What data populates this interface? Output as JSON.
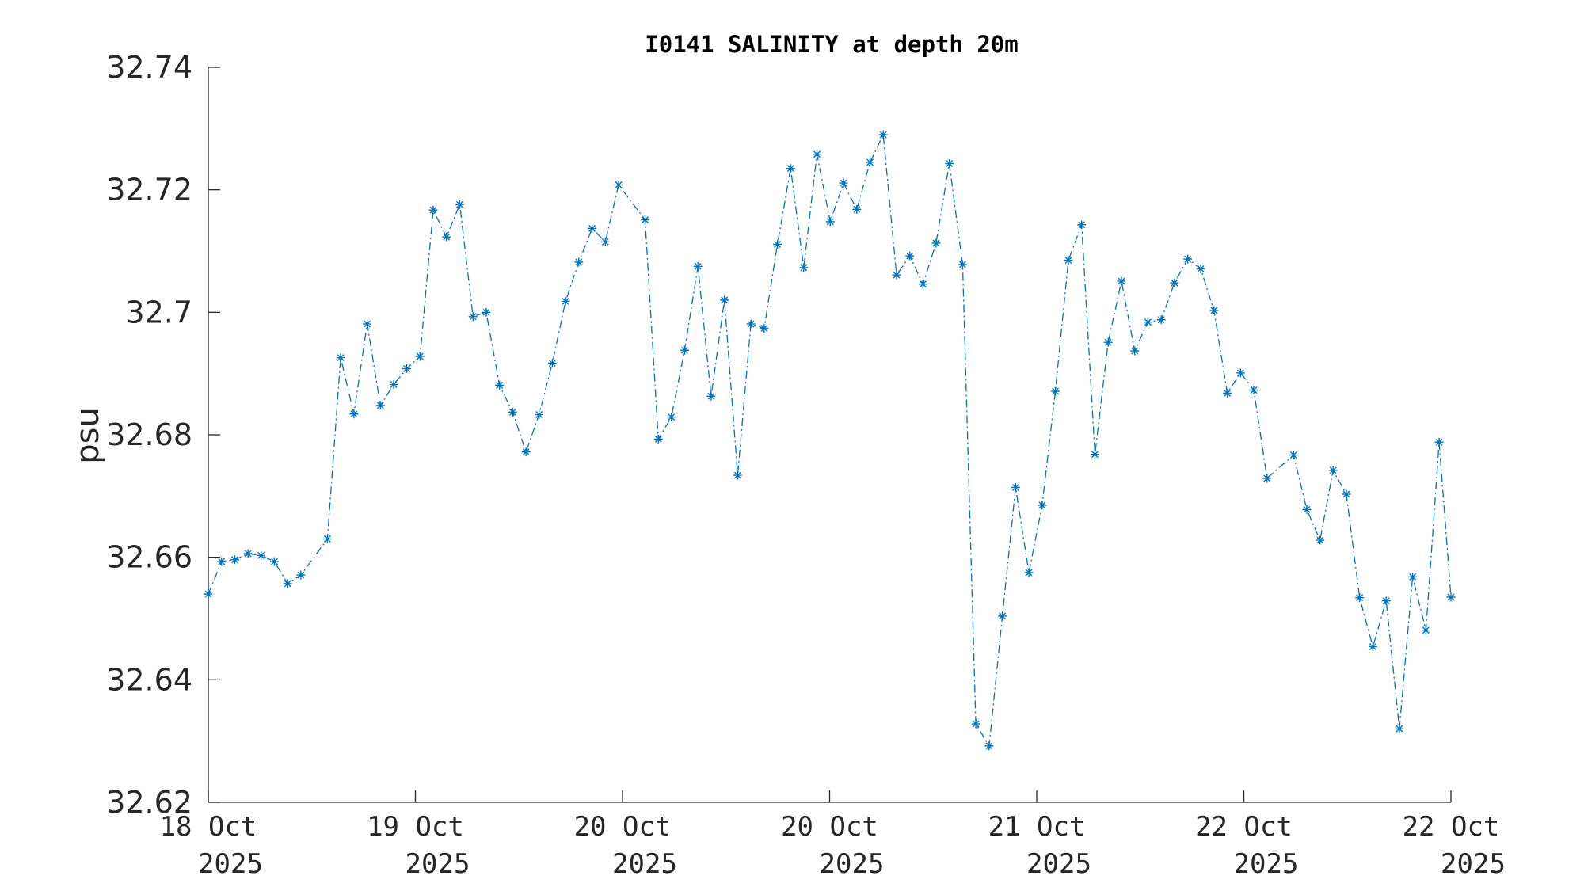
{
  "chart_data": {
    "type": "line",
    "title": "I0141 SALINITY at depth 20m",
    "xlabel": "",
    "ylabel": "psu",
    "ylim": [
      32.62,
      32.74
    ],
    "yticks": [
      32.62,
      32.64,
      32.66,
      32.68,
      32.7,
      32.72,
      32.74
    ],
    "ytick_labels": [
      "32.62",
      "32.64",
      "32.66",
      "32.68",
      "32.7",
      "32.72",
      "32.74"
    ],
    "xlim": [
      0,
      6
    ],
    "xticks": [
      0,
      1,
      2,
      3,
      4,
      5,
      6
    ],
    "xtick_labels": [
      [
        "18 Oct",
        "2025"
      ],
      [
        "19 Oct",
        "2025"
      ],
      [
        "20 Oct",
        "2025"
      ],
      [
        "20 Oct",
        "2025"
      ],
      [
        "21 Oct",
        "2025"
      ],
      [
        "22 Oct",
        "2025"
      ],
      [
        "22 Oct",
        "2025"
      ]
    ],
    "grid": false,
    "line_style": "dash-dot",
    "marker": "asterisk",
    "color": "#0072BD",
    "series": [
      {
        "x": [
          0.0,
          0.064,
          0.128,
          0.192,
          0.255,
          0.319,
          0.383,
          0.447,
          0.575,
          0.639,
          0.703,
          0.767,
          0.831,
          0.895,
          0.958,
          1.022,
          1.086,
          1.15,
          1.214,
          1.278,
          1.342,
          1.406,
          1.47,
          1.534,
          1.597,
          1.661,
          1.725,
          1.789,
          1.853,
          1.917,
          1.981,
          2.109,
          2.173,
          2.236,
          2.3,
          2.364,
          2.428,
          2.492,
          2.556,
          2.62,
          2.684,
          2.748,
          2.812,
          2.875,
          2.939,
          3.003,
          3.067,
          3.131,
          3.195,
          3.259,
          3.323,
          3.387,
          3.451,
          3.514,
          3.578,
          3.642,
          3.706,
          3.77,
          3.834,
          3.898,
          3.962,
          4.026,
          4.09,
          4.153,
          4.217,
          4.281,
          4.345,
          4.409,
          4.473,
          4.537,
          4.601,
          4.665,
          4.729,
          4.792,
          4.856,
          4.92,
          4.984,
          5.048,
          5.112,
          5.24,
          5.304,
          5.368,
          5.431,
          5.495,
          5.559,
          5.623,
          5.687,
          5.751,
          5.815,
          5.879,
          5.943,
          6.0
        ],
        "y": [
          32.654,
          32.6593,
          32.6596,
          32.6606,
          32.6603,
          32.6593,
          32.6557,
          32.6571,
          32.663,
          32.6926,
          32.6834,
          32.6981,
          32.6848,
          32.6882,
          32.6908,
          32.6928,
          32.7167,
          32.7123,
          32.7176,
          32.6993,
          32.7,
          32.6881,
          32.6837,
          32.6772,
          32.6833,
          32.6917,
          32.7018,
          32.7082,
          32.7137,
          32.7115,
          32.7208,
          32.7151,
          32.6793,
          32.6829,
          32.6938,
          32.7075,
          32.6863,
          32.702,
          32.6734,
          32.6981,
          32.6974,
          32.7111,
          32.7235,
          32.7073,
          32.7258,
          32.7148,
          32.7211,
          32.7168,
          32.7245,
          32.729,
          32.7061,
          32.7092,
          32.7046,
          32.7113,
          32.7243,
          32.7078,
          32.6328,
          32.6292,
          32.6504,
          32.6714,
          32.6575,
          32.6685,
          32.6871,
          32.7085,
          32.7143,
          32.6768,
          32.6951,
          32.7051,
          32.6937,
          32.6984,
          32.6988,
          32.7048,
          32.7087,
          32.7071,
          32.7003,
          32.6868,
          32.6901,
          32.6873,
          32.6729,
          32.6767,
          32.6678,
          32.6628,
          32.6742,
          32.6703,
          32.6534,
          32.6454,
          32.6529,
          32.632,
          32.6568,
          32.6481,
          32.6788,
          32.6535
        ]
      }
    ]
  }
}
